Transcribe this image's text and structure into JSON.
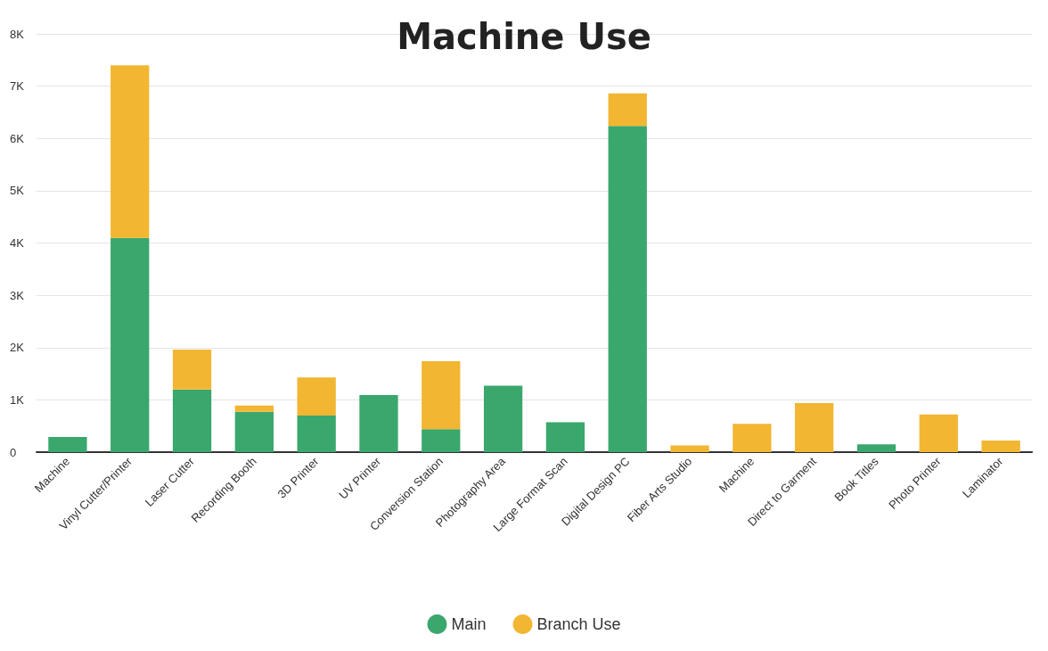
{
  "chart_data": {
    "type": "bar",
    "title": "Machine Use",
    "stacked": true,
    "categories": [
      "Machine",
      "Vinyl Cutter/Printer",
      "Laser Cutter",
      "Recording Booth",
      "3D Printer",
      "UV Printer",
      "Conversion Station",
      "Photography Area",
      "Large Format Scan",
      "Digital Design PC",
      "Fiber Arts Studio",
      "Machine",
      "Direct to Garment",
      "Book Titles",
      "Photo Printer",
      "Laminator"
    ],
    "series": [
      {
        "name": "Main",
        "color": "#3aa76d",
        "values": [
          290,
          4100,
          1200,
          770,
          700,
          1090,
          440,
          1270,
          570,
          6240,
          0,
          0,
          0,
          150,
          0,
          0
        ]
      },
      {
        "name": "Branch Use",
        "color": "#f2b632",
        "values": [
          0,
          3300,
          760,
          120,
          730,
          0,
          1300,
          0,
          0,
          620,
          130,
          540,
          940,
          0,
          720,
          220
        ]
      }
    ],
    "ylim": [
      0,
      8000
    ],
    "yticks": [
      0,
      {
        "value": 1000,
        "label": "1K"
      },
      {
        "value": 2000,
        "label": "2K"
      },
      {
        "value": 3000,
        "label": "3K"
      },
      {
        "value": 4000,
        "label": "4K"
      },
      {
        "value": 5000,
        "label": "5K"
      },
      {
        "value": 6000,
        "label": "6K"
      },
      {
        "value": 7000,
        "label": "7K"
      },
      {
        "value": 8000,
        "label": "8K"
      }
    ],
    "grid": "y",
    "legend": "bottom"
  }
}
